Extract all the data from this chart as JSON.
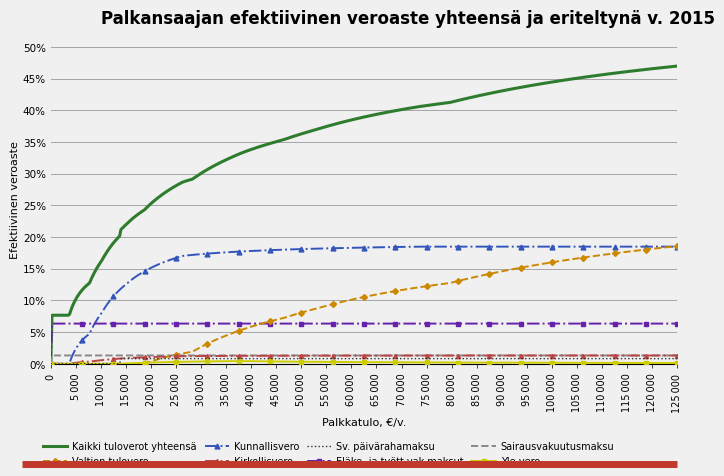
{
  "title": "Palkansaajan efektiivinen veroaste yhteensä ja eriteltynä v. 2015",
  "xlabel": "Palkkatulo, €/v.",
  "ylabel": "Efektiivinen veroaste",
  "ylim": [
    0,
    0.52
  ],
  "yticks": [
    0.0,
    0.05,
    0.1,
    0.15,
    0.2,
    0.25,
    0.3,
    0.35,
    0.4,
    0.45,
    0.5
  ],
  "ytick_labels": [
    "0%",
    "5%",
    "10%",
    "15%",
    "20%",
    "25%",
    "30%",
    "35%",
    "40%",
    "45%",
    "50%"
  ],
  "xlim": [
    0,
    125000
  ],
  "x_max": 125000,
  "income_step": 250,
  "colors": {
    "kaikki": "#2e7d2e",
    "valtio": "#cc8800",
    "kunnallis": "#3355bb",
    "kirkko": "#bb4444",
    "yle": "#cccc00",
    "elake": "#6622aa",
    "sairaus": "#888888",
    "paivaraha": "#333333"
  },
  "labels": {
    "kaikki": "Kaikki tuloverot yhteensä",
    "valtio": "Valtion tulovero",
    "kunnallis": "Kunnallisvero",
    "kirkko": "Kirkollisvero",
    "yle": "Yle-vero",
    "elake": "Eläke- ja tyött.vak.maksut",
    "sairaus": "Sairausvakuutusmaksu",
    "paivaraha": "Sv. päivärahamaksu"
  },
  "background_color": "#f0f0f0",
  "plot_bg": "#f0f0f0",
  "grid_color": "#999999",
  "title_fontsize": 12,
  "axis_fontsize": 8,
  "tick_fontsize": 7.5,
  "legend_fontsize": 7,
  "red_bar_color": "#c0392b",
  "municipal_rate": 0.1975,
  "church_rate": 0.014,
  "pension_rate": 0.057,
  "unemp_rate": 0.0065,
  "sairaus_rate": 0.0132,
  "paivaraha_rate": 0.0082
}
